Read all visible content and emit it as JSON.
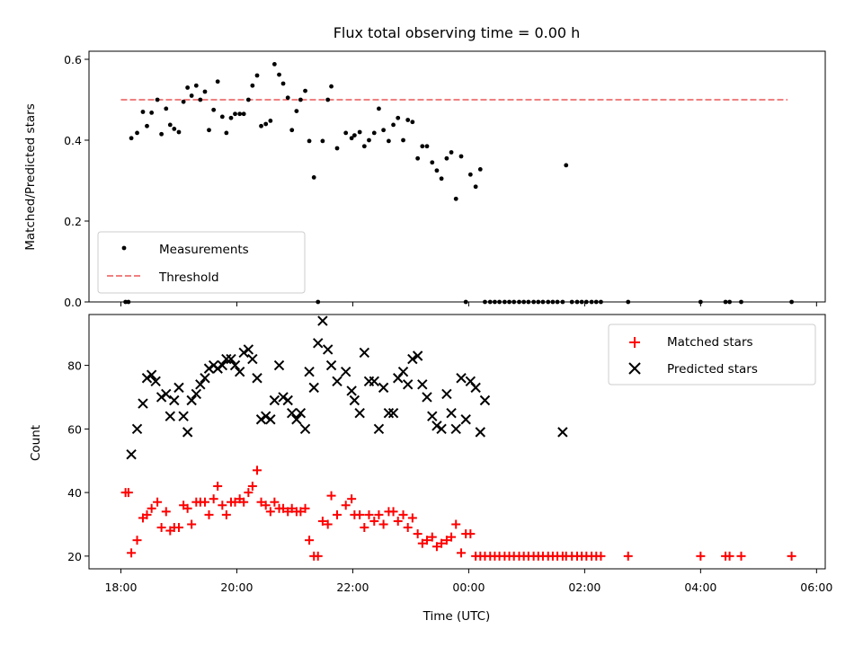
{
  "title": "Flux total observing time = 0.00 h",
  "chart_data": [
    {
      "type": "scatter",
      "ylabel": "Matched/Predicted stars",
      "ylim": [
        0,
        0.62
      ],
      "yticks": [
        0.0,
        0.2,
        0.4,
        0.6
      ],
      "ytick_labels": [
        "0.0",
        "0.2",
        "0.4",
        "0.6"
      ],
      "legend_position": "lower-left",
      "threshold": {
        "name": "Threshold",
        "value": 0.5,
        "x_start": 18.0,
        "x_end": 29.5,
        "color": "#f08080"
      },
      "series": [
        {
          "name": "Measurements",
          "color": "#000000",
          "x": [
            18.08,
            18.13,
            18.18,
            18.28,
            18.38,
            18.45,
            18.53,
            18.63,
            18.7,
            18.78,
            18.85,
            18.92,
            19.0,
            19.08,
            19.15,
            19.22,
            19.3,
            19.37,
            19.45,
            19.52,
            19.6,
            19.67,
            19.75,
            19.82,
            19.9,
            19.97,
            20.05,
            20.12,
            20.2,
            20.27,
            20.35,
            20.42,
            20.5,
            20.58,
            20.65,
            20.73,
            20.8,
            20.88,
            20.95,
            21.03,
            21.1,
            21.18,
            21.25,
            21.33,
            21.4,
            21.48,
            21.57,
            21.63,
            21.73,
            21.88,
            21.98,
            22.03,
            22.12,
            22.2,
            22.28,
            22.37,
            22.45,
            22.53,
            22.62,
            22.7,
            22.78,
            22.87,
            22.95,
            23.03,
            23.12,
            23.2,
            23.28,
            23.37,
            23.45,
            23.53,
            23.62,
            23.7,
            23.78,
            23.87,
            23.95,
            24.03,
            24.12,
            24.2,
            24.28,
            24.37,
            24.45,
            24.53,
            24.62,
            24.7,
            24.78,
            24.87,
            24.95,
            25.03,
            25.12,
            25.2,
            25.28,
            25.37,
            25.45,
            25.53,
            25.62,
            25.68,
            25.78,
            25.87,
            25.95,
            26.03,
            26.12,
            26.2,
            26.28,
            26.75,
            28.0,
            28.43,
            28.5,
            28.7,
            29.57
          ],
          "y": [
            0.0,
            0.0,
            0.405,
            0.418,
            0.47,
            0.435,
            0.468,
            0.5,
            0.415,
            0.478,
            0.438,
            0.428,
            0.42,
            0.495,
            0.53,
            0.51,
            0.535,
            0.5,
            0.52,
            0.425,
            0.475,
            0.545,
            0.458,
            0.418,
            0.455,
            0.465,
            0.465,
            0.465,
            0.5,
            0.535,
            0.56,
            0.435,
            0.44,
            0.448,
            0.588,
            0.562,
            0.54,
            0.505,
            0.425,
            0.472,
            0.5,
            0.522,
            0.398,
            0.308,
            0.0,
            0.398,
            0.5,
            0.533,
            0.38,
            0.418,
            0.405,
            0.412,
            0.42,
            0.385,
            0.4,
            0.418,
            0.478,
            0.425,
            0.398,
            0.438,
            0.455,
            0.4,
            0.45,
            0.445,
            0.355,
            0.385,
            0.385,
            0.345,
            0.325,
            0.305,
            0.355,
            0.37,
            0.255,
            0.36,
            0.0,
            0.315,
            0.285,
            0.328,
            0.0,
            0.0,
            0.0,
            0.0,
            0.0,
            0.0,
            0.0,
            0.0,
            0.0,
            0.0,
            0.0,
            0.0,
            0.0,
            0.0,
            0.0,
            0.0,
            0.0,
            0.338,
            0.0,
            0.0,
            0.0,
            0.0,
            0.0,
            0.0,
            0.0,
            0.0,
            0.0,
            0.0,
            0.0,
            0.0,
            0.0
          ]
        }
      ]
    },
    {
      "type": "scatter",
      "xlabel": "Time (UTC)",
      "ylabel": "Count",
      "ylim": [
        16,
        96
      ],
      "yticks": [
        20,
        40,
        60,
        80
      ],
      "ytick_labels": [
        "20",
        "40",
        "60",
        "80"
      ],
      "xlim": [
        17.45,
        30.15
      ],
      "xticks": [
        18,
        20,
        22,
        24,
        26,
        28,
        30
      ],
      "xtick_labels": [
        "18:00",
        "20:00",
        "22:00",
        "00:00",
        "02:00",
        "04:00",
        "06:00"
      ],
      "legend_position": "upper-right",
      "series": [
        {
          "name": "Matched stars",
          "marker": "plus",
          "color": "#ff0000",
          "x": [
            18.08,
            18.13,
            18.18,
            18.28,
            18.38,
            18.45,
            18.53,
            18.63,
            18.7,
            18.78,
            18.85,
            18.92,
            19.0,
            19.08,
            19.15,
            19.22,
            19.3,
            19.37,
            19.45,
            19.52,
            19.6,
            19.67,
            19.75,
            19.82,
            19.9,
            19.97,
            20.05,
            20.12,
            20.2,
            20.27,
            20.35,
            20.42,
            20.5,
            20.58,
            20.65,
            20.73,
            20.8,
            20.88,
            20.95,
            21.03,
            21.1,
            21.18,
            21.25,
            21.33,
            21.4,
            21.48,
            21.57,
            21.63,
            21.73,
            21.88,
            21.98,
            22.03,
            22.12,
            22.2,
            22.28,
            22.37,
            22.45,
            22.53,
            22.62,
            22.7,
            22.78,
            22.87,
            22.95,
            23.03,
            23.12,
            23.2,
            23.28,
            23.37,
            23.45,
            23.53,
            23.62,
            23.7,
            23.78,
            23.87,
            23.95,
            24.03,
            24.12,
            24.2,
            24.28,
            24.37,
            24.45,
            24.53,
            24.62,
            24.7,
            24.78,
            24.87,
            24.95,
            25.03,
            25.12,
            25.2,
            25.28,
            25.37,
            25.45,
            25.53,
            25.62,
            25.68,
            25.78,
            25.87,
            25.95,
            26.03,
            26.12,
            26.2,
            26.28,
            26.75,
            28.0,
            28.43,
            28.5,
            28.7,
            29.57
          ],
          "y": [
            40,
            40,
            21,
            25,
            32,
            33,
            35,
            37,
            29,
            34,
            28,
            29,
            29,
            36,
            35,
            30,
            37,
            37,
            37,
            33,
            38,
            42,
            36,
            33,
            37,
            37,
            38,
            37,
            40,
            42,
            47,
            37,
            36,
            34,
            37,
            35,
            35,
            34,
            35,
            34,
            34,
            35,
            25,
            20,
            20,
            31,
            30,
            39,
            33,
            36,
            38,
            33,
            33,
            29,
            33,
            31,
            33,
            30,
            34,
            34,
            31,
            33,
            29,
            32,
            27,
            24,
            25,
            26,
            23,
            24,
            25,
            26,
            30,
            21,
            27,
            27,
            20,
            20,
            20,
            20,
            20,
            20,
            20,
            20,
            20,
            20,
            20,
            20,
            20,
            20,
            20,
            20,
            20,
            20,
            20,
            20,
            20,
            20,
            20,
            20,
            20,
            20,
            20,
            20,
            20,
            20,
            20,
            20,
            20
          ]
        },
        {
          "name": "Predicted stars",
          "marker": "x",
          "color": "#000000",
          "x": [
            18.18,
            18.28,
            18.38,
            18.45,
            18.53,
            18.6,
            18.7,
            18.78,
            18.85,
            18.92,
            19.0,
            19.08,
            19.15,
            19.22,
            19.3,
            19.37,
            19.45,
            19.52,
            19.6,
            19.67,
            19.75,
            19.82,
            19.9,
            19.97,
            20.05,
            20.12,
            20.2,
            20.27,
            20.35,
            20.42,
            20.5,
            20.58,
            20.65,
            20.73,
            20.8,
            20.88,
            20.95,
            21.03,
            21.1,
            21.18,
            21.25,
            21.33,
            21.4,
            21.48,
            21.57,
            21.63,
            21.73,
            21.88,
            21.98,
            22.03,
            22.12,
            22.2,
            22.28,
            22.37,
            22.45,
            22.53,
            22.62,
            22.7,
            22.78,
            22.87,
            22.95,
            23.03,
            23.12,
            23.2,
            23.28,
            23.37,
            23.45,
            23.53,
            23.62,
            23.7,
            23.78,
            23.87,
            23.95,
            24.03,
            24.12,
            24.2,
            24.28,
            25.62
          ],
          "y": [
            52,
            60,
            68,
            76,
            77,
            75,
            70,
            71,
            64,
            69,
            73,
            64,
            59,
            69,
            71,
            74,
            76,
            79,
            80,
            79,
            80,
            82,
            82,
            80,
            78,
            84,
            85,
            82,
            76,
            63,
            64,
            63,
            69,
            80,
            70,
            69,
            65,
            63,
            65,
            60,
            78,
            73,
            87,
            94,
            85,
            80,
            75,
            78,
            72,
            69,
            65,
            84,
            75,
            75,
            60,
            73,
            65,
            65,
            76,
            78,
            74,
            82,
            83,
            74,
            70,
            64,
            61,
            60,
            71,
            65,
            60,
            76,
            63,
            75,
            73,
            59,
            69,
            59
          ]
        }
      ]
    }
  ]
}
